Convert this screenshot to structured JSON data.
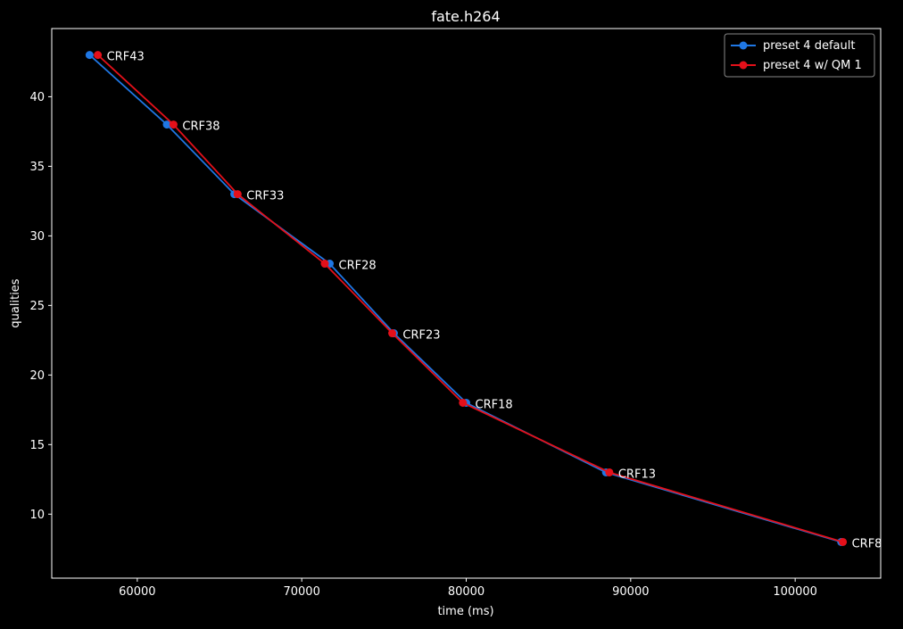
{
  "chart_data": {
    "type": "line",
    "title": "fate.h264",
    "xlabel": "time (ms)",
    "ylabel": "qualities",
    "xlim": [
      54800,
      105200
    ],
    "ylim": [
      5.4,
      44.9
    ],
    "xticks": [
      60000,
      70000,
      80000,
      90000,
      100000
    ],
    "yticks": [
      10,
      15,
      20,
      25,
      30,
      35,
      40
    ],
    "grid": false,
    "legend_position": "top-right",
    "series": [
      {
        "name": "preset 4 default",
        "color": "#1f77e4",
        "marker": "circle",
        "points": [
          {
            "x": 57100,
            "y": 43
          },
          {
            "x": 61800,
            "y": 38
          },
          {
            "x": 65900,
            "y": 33
          },
          {
            "x": 71700,
            "y": 28
          },
          {
            "x": 75600,
            "y": 23
          },
          {
            "x": 80000,
            "y": 18
          },
          {
            "x": 88500,
            "y": 13
          },
          {
            "x": 102800,
            "y": 8
          }
        ]
      },
      {
        "name": "preset 4 w/ QM 1",
        "color": "#e4101a",
        "marker": "circle",
        "points": [
          {
            "x": 57600,
            "y": 43
          },
          {
            "x": 62200,
            "y": 38
          },
          {
            "x": 66100,
            "y": 33
          },
          {
            "x": 71400,
            "y": 28
          },
          {
            "x": 75500,
            "y": 23
          },
          {
            "x": 79800,
            "y": 18
          },
          {
            "x": 88700,
            "y": 13
          },
          {
            "x": 102900,
            "y": 8
          }
        ]
      }
    ],
    "annotations": [
      {
        "text": "CRF43",
        "x": 57600,
        "y": 43
      },
      {
        "text": "CRF38",
        "x": 62200,
        "y": 38
      },
      {
        "text": "CRF33",
        "x": 66100,
        "y": 33
      },
      {
        "text": "CRF28",
        "x": 71700,
        "y": 28
      },
      {
        "text": "CRF23",
        "x": 75600,
        "y": 23
      },
      {
        "text": "CRF18",
        "x": 80000,
        "y": 18
      },
      {
        "text": "CRF13",
        "x": 88700,
        "y": 13
      },
      {
        "text": "CRF8",
        "x": 102900,
        "y": 8
      }
    ]
  }
}
